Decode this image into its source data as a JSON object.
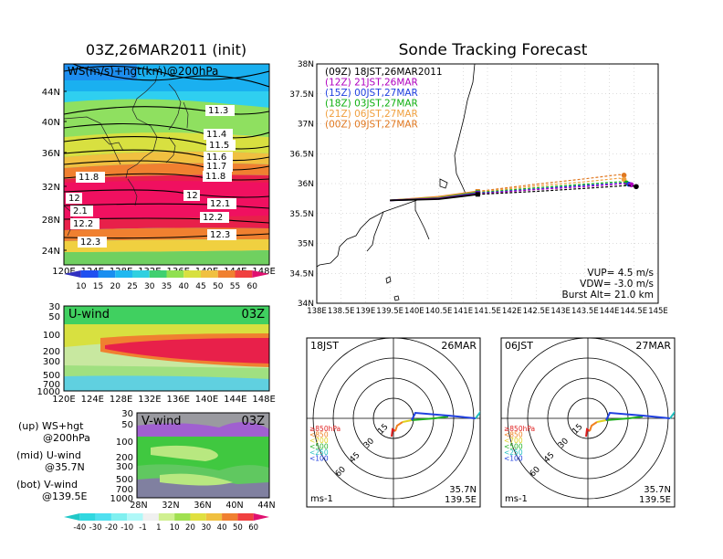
{
  "left": {
    "title": "03Z,26MAR2011 (init)",
    "map": {
      "label": "WS(m/s)+hgt(km)@200hPa",
      "lat_labels": [
        "44N",
        "40N",
        "36N",
        "32N",
        "28N",
        "24N"
      ],
      "lon_labels": [
        "120E",
        "124E",
        "128E",
        "132E",
        "136E",
        "140E",
        "144E",
        "148E"
      ],
      "contour_labels": [
        "11.3",
        "11.4",
        "11.5",
        "11.6",
        "11.7",
        "11.8",
        "11.8",
        "12",
        "12",
        "12.1",
        "2.1",
        "12.2",
        "12.2",
        "12.3",
        "12.3"
      ],
      "colorbar_labels": [
        "10",
        "15",
        "20",
        "25",
        "30",
        "35",
        "40",
        "45",
        "50",
        "55",
        "60"
      ]
    },
    "uwind": {
      "label": "U-wind",
      "time": "03Z",
      "p_labels": [
        "30",
        "50",
        "100",
        "200",
        "300",
        "500",
        "700",
        "1000"
      ],
      "lon_labels": [
        "120E",
        "124E",
        "128E",
        "132E",
        "136E",
        "140E",
        "144E",
        "148E"
      ]
    },
    "vwind": {
      "label": "V-wind",
      "time": "03Z",
      "p_labels": [
        "30",
        "50",
        "100",
        "200",
        "300",
        "500",
        "700",
        "1000"
      ],
      "lat_labels": [
        "28N",
        "32N",
        "36N",
        "40N",
        "44N"
      ]
    },
    "legend": {
      "up": "(up) WS+hgt",
      "up2": "@200hPa",
      "mid": "(mid) U-wind",
      "mid2": "@35.7N",
      "bot": "(bot) V-wind",
      "bot2": "@139.5E"
    },
    "bottom_colorbar_labels": [
      "-40",
      "-30",
      "-20",
      "-10",
      "-1",
      "1",
      "10",
      "20",
      "30",
      "40",
      "50",
      "60"
    ]
  },
  "right": {
    "title": "Sonde Tracking Forecast",
    "lat_labels": [
      "38N",
      "37.5N",
      "37N",
      "36.5N",
      "36N",
      "35.5N",
      "35N",
      "34.5N",
      "34N"
    ],
    "lon_labels": [
      "138E",
      "138.5E",
      "139E",
      "139.5E",
      "140E",
      "140.5E",
      "141E",
      "141.5E",
      "142E",
      "142.5E",
      "143E",
      "143.5E",
      "144E",
      "144.5E",
      "145E"
    ],
    "legend": [
      {
        "label": "(09Z)  18JST,26MAR2011",
        "color": "#000000"
      },
      {
        "label": "(12Z)  21JST,26MAR",
        "color": "#b000c0"
      },
      {
        "label": "(15Z)  00JST,27MAR",
        "color": "#2040e0"
      },
      {
        "label": "(18Z)  03JST,27MAR",
        "color": "#10b010"
      },
      {
        "label": "(21Z)  06JST,27MAR",
        "color": "#f0a040"
      },
      {
        "label": "(00Z)  09JST,27MAR",
        "color": "#e07820"
      }
    ],
    "info": [
      "VUP=   4.5 m/s",
      "VDW=  -3.0 m/s",
      "Burst Alt=  21.0 km"
    ],
    "hodo1": {
      "left": "18JST",
      "right": "26MAR",
      "rings": [
        "15",
        "30",
        "45",
        "60"
      ],
      "unit": "ms-1",
      "loc1": "35.7N",
      "loc2": "139.5E"
    },
    "hodo2": {
      "left": "06JST",
      "right": "27MAR",
      "rings": [
        "15",
        "30",
        "45",
        "60"
      ],
      "unit": "ms-1",
      "loc1": "35.7N",
      "loc2": "139.5E"
    },
    "hodo_levels": [
      {
        "label": "≥850hPa",
        "color": "#e02020"
      },
      {
        "label": "<850",
        "color": "#f08020"
      },
      {
        "label": "<700",
        "color": "#e0d020"
      },
      {
        "label": "<500",
        "color": "#20b020"
      },
      {
        "label": "<250",
        "color": "#20c0c0"
      },
      {
        "label": "<100",
        "color": "#2040e0"
      }
    ]
  },
  "chart_data": [
    {
      "type": "line",
      "title": "Sonde Tracking Forecast",
      "xlim": [
        138,
        145
      ],
      "ylim": [
        34,
        38
      ],
      "series": [
        {
          "name": "(09Z)  18JST,26MAR2011",
          "x": [
            139.5,
            140.5,
            141.3,
            142.5,
            143.5,
            144.4,
            144.55
          ],
          "y": [
            35.72,
            35.74,
            35.82,
            35.87,
            35.92,
            35.97,
            35.95
          ]
        },
        {
          "name": "(12Z)  21JST,26MAR",
          "x": [
            139.5,
            140.5,
            141.3,
            142.5,
            143.5,
            144.3,
            144.45
          ],
          "y": [
            35.72,
            35.75,
            35.83,
            35.9,
            35.95,
            36.0,
            35.98
          ]
        },
        {
          "name": "(15Z)  00JST,27MAR",
          "x": [
            139.5,
            140.5,
            141.3,
            142.5,
            143.5,
            144.3,
            144.4
          ],
          "y": [
            35.72,
            35.75,
            35.84,
            35.91,
            35.97,
            36.01,
            35.99
          ]
        },
        {
          "name": "(18Z)  03JST,27MAR",
          "x": [
            139.5,
            140.5,
            141.3,
            142.5,
            143.5,
            144.2,
            144.35
          ],
          "y": [
            35.72,
            35.76,
            35.85,
            35.93,
            35.99,
            36.03,
            36.01
          ]
        },
        {
          "name": "(21Z)  06JST,27MAR",
          "x": [
            139.5,
            140.5,
            141.3,
            142.5,
            143.5,
            144.2,
            144.3
          ],
          "y": [
            35.72,
            35.77,
            35.86,
            35.96,
            36.03,
            36.09,
            36.07
          ]
        },
        {
          "name": "(00Z)  09JST,27MAR",
          "x": [
            139.5,
            140.5,
            141.3,
            142.5,
            143.5,
            144.2,
            144.3
          ],
          "y": [
            35.72,
            35.78,
            35.87,
            35.99,
            36.08,
            36.15,
            36.14
          ]
        }
      ]
    }
  ]
}
